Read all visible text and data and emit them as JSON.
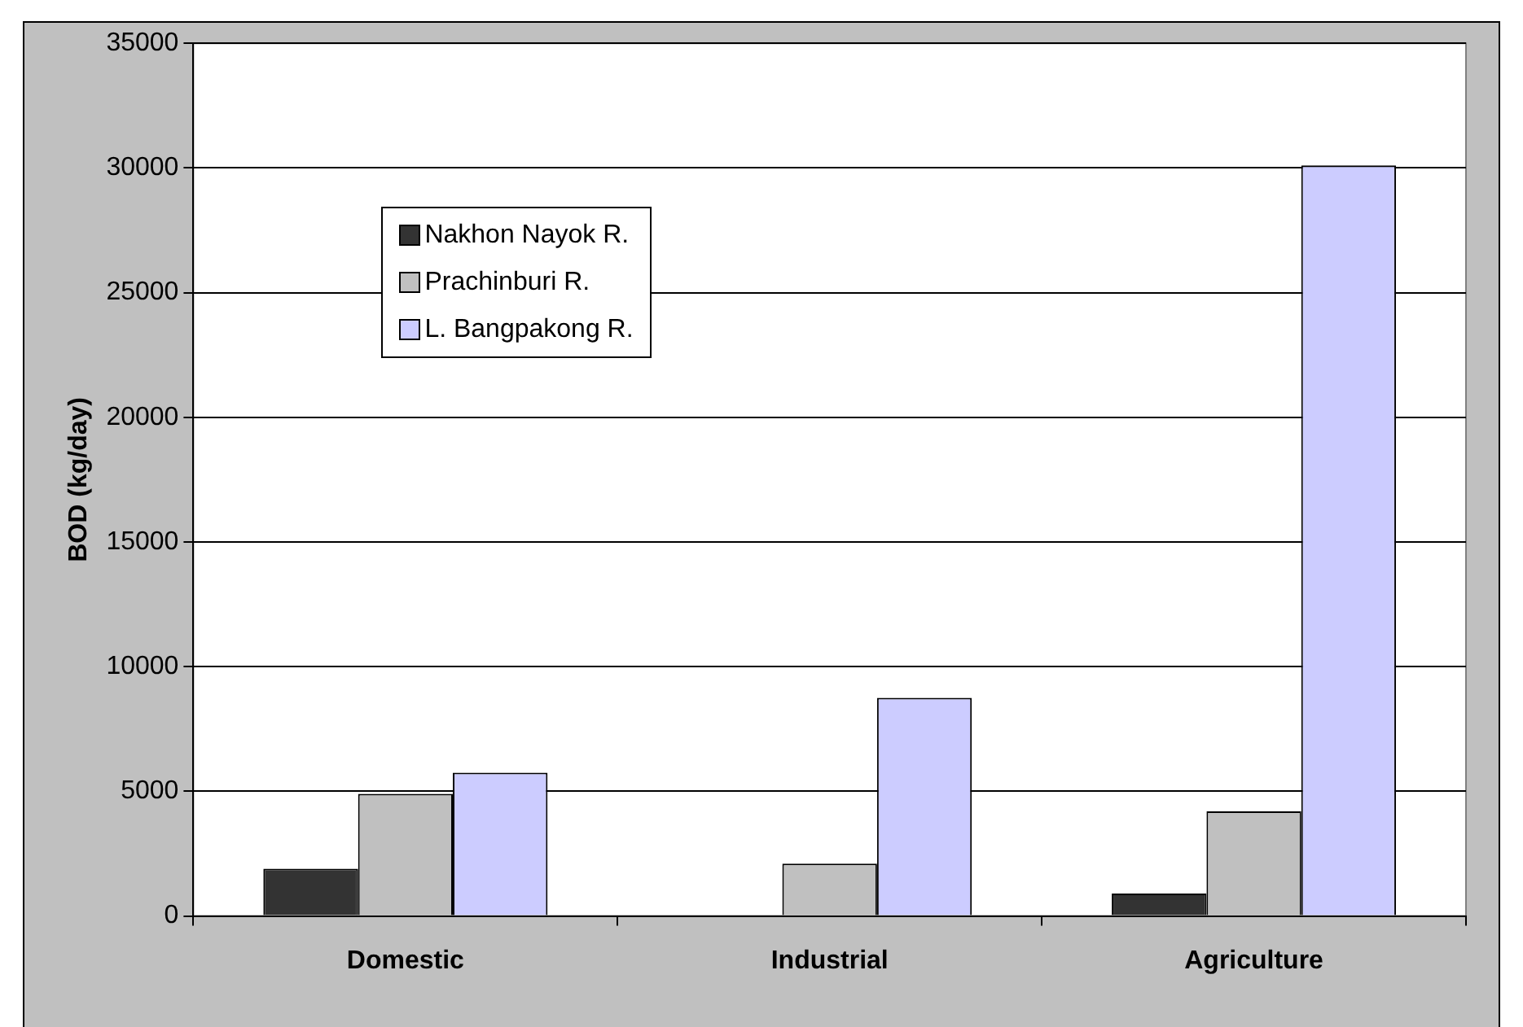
{
  "chart_data": {
    "type": "bar",
    "ylabel": "BOD (kg/day)",
    "categories": [
      "Domestic",
      "Industrial",
      "Agriculture"
    ],
    "series": [
      {
        "name": "Nakhon Nayok R.",
        "color": "#333333",
        "values": [
          1900,
          0,
          900
        ]
      },
      {
        "name": "Prachinburi R.",
        "color": "#c0c0c0",
        "values": [
          4900,
          2100,
          4200
        ]
      },
      {
        "name": "L. Bangpakong R.",
        "color": "#ccccff",
        "values": [
          5750,
          8750,
          30100
        ]
      }
    ],
    "ylim": [
      0,
      35000
    ],
    "yticks": [
      0,
      5000,
      10000,
      15000,
      20000,
      25000,
      30000,
      35000
    ],
    "grid": "y",
    "legend": "top left"
  }
}
